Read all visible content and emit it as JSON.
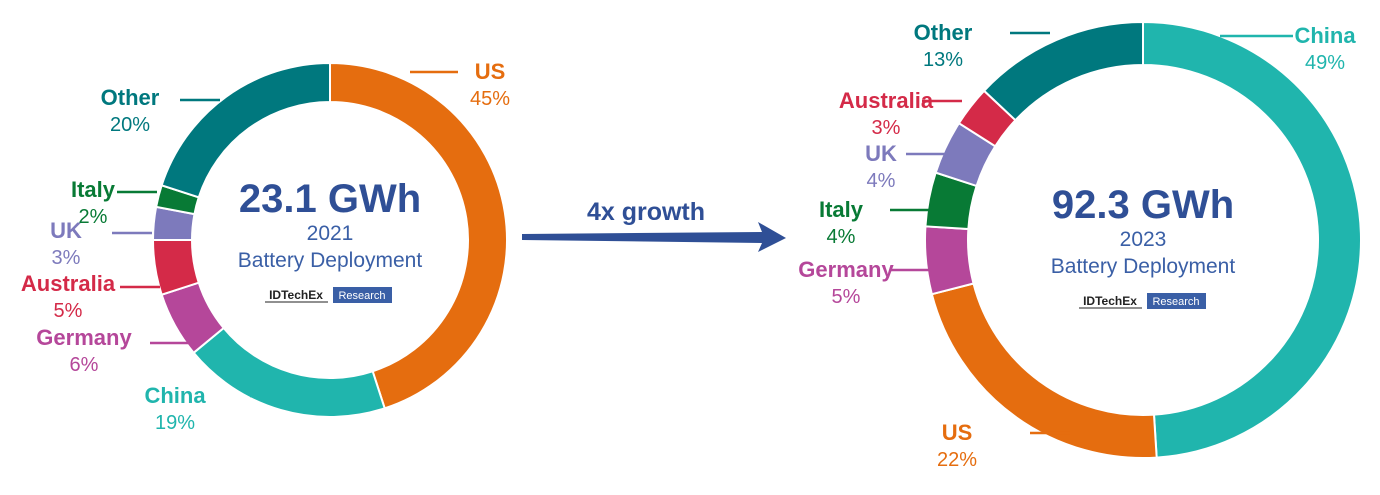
{
  "chart_data": [
    {
      "type": "pie",
      "donut": true,
      "title": "23.1 GWh",
      "year": "2021",
      "subtitle": "Battery Deployment",
      "slices": [
        {
          "label": "US",
          "value": 45,
          "pct_text": "45%",
          "color": "#e56d0f"
        },
        {
          "label": "China",
          "value": 19,
          "pct_text": "19%",
          "color": "#20b5ad"
        },
        {
          "label": "Germany",
          "value": 6,
          "pct_text": "6%",
          "color": "#b5479a"
        },
        {
          "label": "Australia",
          "value": 5,
          "pct_text": "5%",
          "color": "#d42a48"
        },
        {
          "label": "UK",
          "value": 3,
          "pct_text": "3%",
          "color": "#7d7abc"
        },
        {
          "label": "Italy",
          "value": 2,
          "pct_text": "2%",
          "color": "#087a35"
        },
        {
          "label": "Other",
          "value": 20,
          "pct_text": "20%",
          "color": "#00787e"
        }
      ]
    },
    {
      "type": "pie",
      "donut": true,
      "title": "92.3 GWh",
      "year": "2023",
      "subtitle": "Battery Deployment",
      "slices": [
        {
          "label": "China",
          "value": 49,
          "pct_text": "49%",
          "color": "#20b5ad"
        },
        {
          "label": "US",
          "value": 22,
          "pct_text": "22%",
          "color": "#e56d0f"
        },
        {
          "label": "Germany",
          "value": 5,
          "pct_text": "5%",
          "color": "#b5479a"
        },
        {
          "label": "Italy",
          "value": 4,
          "pct_text": "4%",
          "color": "#087a35"
        },
        {
          "label": "UK",
          "value": 4,
          "pct_text": "4%",
          "color": "#7d7abc"
        },
        {
          "label": "Australia",
          "value": 3,
          "pct_text": "3%",
          "color": "#d42a48"
        },
        {
          "label": "Other",
          "value": 13,
          "pct_text": "13%",
          "color": "#00787e"
        }
      ]
    }
  ],
  "growth_label": "4x growth",
  "logo": {
    "brand": "IDTechEx",
    "tag": "Research",
    "brand_color": "#3a5fa6"
  },
  "colors": {
    "center_text": "#2f4f96",
    "arrow": "#2f4f96"
  }
}
